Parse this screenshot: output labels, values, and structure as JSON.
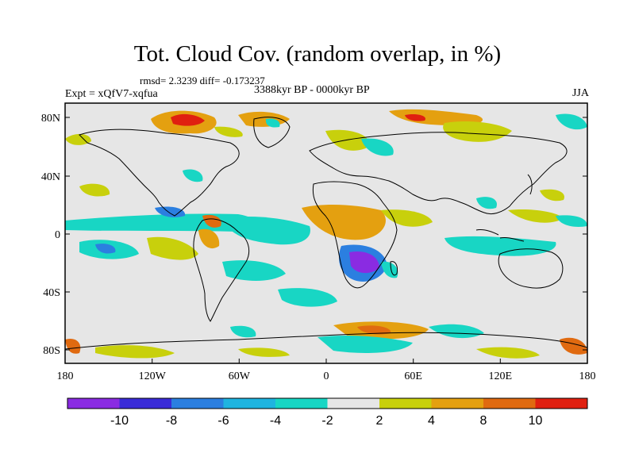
{
  "title": "Tot. Cloud Cov. (random overlap, in %)",
  "stats_line": "rmsd= 2.3239 diff= -0.173237",
  "experiment": "Expt = xQfV7-xqfua",
  "period": "3388kyr BP - 0000kyr BP",
  "season": "JJA",
  "axes": {
    "x_ticks": [
      "180",
      "120W",
      "60W",
      "0",
      "60E",
      "120E",
      "180"
    ],
    "y_ticks": [
      "80N",
      "40N",
      "0",
      "40S",
      "80S"
    ]
  },
  "colorbar": {
    "colors": [
      "#8a2be2",
      "#3a2bd8",
      "#2b7fe0",
      "#1fb4e0",
      "#18d6c4",
      "#e6e6e6",
      "#c8d00c",
      "#e4a010",
      "#e06a10",
      "#e02010"
    ],
    "labels": [
      "-10",
      "-8",
      "-6",
      "-4",
      "-2",
      "2",
      "4",
      "8",
      "10"
    ]
  },
  "colors": {
    "background_field": "#e6e6e6",
    "coastline": "#000000"
  }
}
